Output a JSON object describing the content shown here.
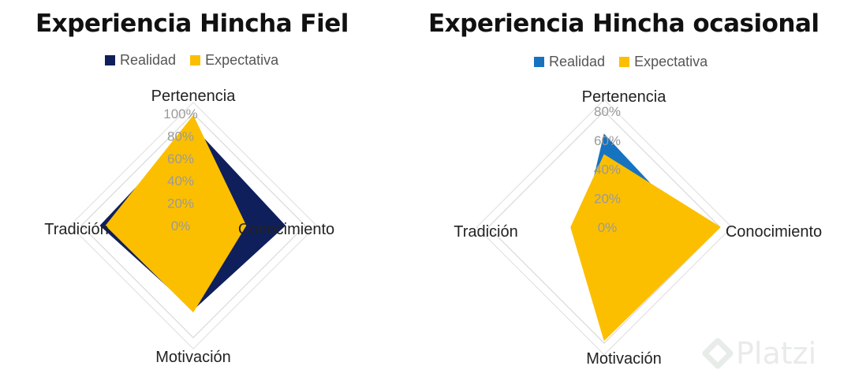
{
  "chart_data": [
    {
      "type": "radar",
      "title": "Experiencia Hincha Fiel",
      "axes": [
        "Pertenencia",
        "Conocimiento",
        "Motivación",
        "Tradición"
      ],
      "tick_labels": [
        "100%",
        "80%",
        "60%",
        "40%",
        "20%",
        "0%"
      ],
      "rmax": 100,
      "legend": "top",
      "series": [
        {
          "name": "Realidad",
          "values": [
            88,
            82,
            75,
            83
          ],
          "color": "#0f1f5c"
        },
        {
          "name": "Expectativa",
          "values": [
            98,
            47,
            77,
            78
          ],
          "color": "#fbbf00"
        }
      ]
    },
    {
      "type": "radar",
      "title": "Experiencia Hincha ocasional",
      "axes": [
        "Pertenencia",
        "Conocimiento",
        "Motivación",
        "Tradición"
      ],
      "tick_labels": [
        "80%",
        "60%",
        "40%",
        "20%",
        "0%"
      ],
      "rmax": 80,
      "legend": "top",
      "series": [
        {
          "name": "Realidad",
          "values": [
            64,
            60,
            77,
            15
          ],
          "color": "#1673c0"
        },
        {
          "name": "Expectativa",
          "values": [
            50,
            80,
            78,
            23
          ],
          "color": "#fbbf00"
        }
      ]
    }
  ],
  "watermark": {
    "text": "Platzi"
  }
}
